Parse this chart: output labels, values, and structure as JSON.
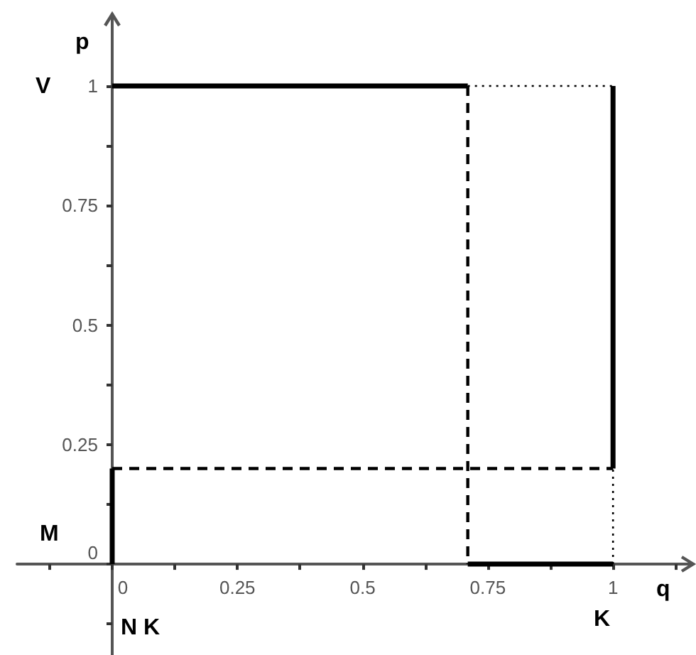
{
  "chart_data": {
    "type": "line",
    "xlabel": "q",
    "ylabel": "p",
    "xlim": [
      -0.19,
      1.16
    ],
    "ylim": [
      -0.19,
      1.15
    ],
    "xticks": [
      {
        "value": -0.125,
        "label": null
      },
      0,
      {
        "value": 0.125,
        "label": null
      },
      0.25,
      {
        "value": 0.375,
        "label": null
      },
      0.5,
      {
        "value": 0.625,
        "label": null
      },
      0.75,
      {
        "value": 0.875,
        "label": null
      },
      1,
      {
        "value": 1.125,
        "label": null
      }
    ],
    "yticks": [
      {
        "value": -0.125,
        "label": null
      },
      0,
      {
        "value": 0.125,
        "label": null
      },
      0.25,
      {
        "value": 0.375,
        "label": null
      },
      0.5,
      {
        "value": 0.625,
        "label": null
      },
      0.75,
      {
        "value": 0.875,
        "label": null
      },
      1
    ],
    "grid": false,
    "marker": "none",
    "series": [
      {
        "color": "#000000",
        "line_style": "solid",
        "x": [
          0,
          0
        ],
        "values": [
          0,
          0.2
        ]
      },
      {
        "color": "#000000",
        "line_style": "dashed",
        "x": [
          0,
          1
        ],
        "values": [
          0.2,
          0.2
        ]
      },
      {
        "color": "#000000",
        "line_style": "solid",
        "x": [
          1,
          1
        ],
        "values": [
          0.2,
          1
        ]
      },
      {
        "color": "#000000",
        "line_style": "solid",
        "x": [
          0,
          0.71
        ],
        "values": [
          1,
          1
        ]
      },
      {
        "color": "#000000",
        "line_style": "dashed",
        "x": [
          0.71,
          0.71
        ],
        "values": [
          1,
          0
        ]
      },
      {
        "color": "#000000",
        "line_style": "solid",
        "x": [
          0.71,
          1
        ],
        "values": [
          0,
          0
        ]
      },
      {
        "color": "#000000",
        "line_style": "dotted",
        "x": [
          0.71,
          1
        ],
        "values": [
          1,
          1
        ]
      },
      {
        "color": "#000000",
        "line_style": "dotted",
        "x": [
          1,
          1
        ],
        "values": [
          0,
          0.2
        ]
      }
    ],
    "annotations": [
      "V",
      "M",
      "N K",
      "K"
    ]
  }
}
